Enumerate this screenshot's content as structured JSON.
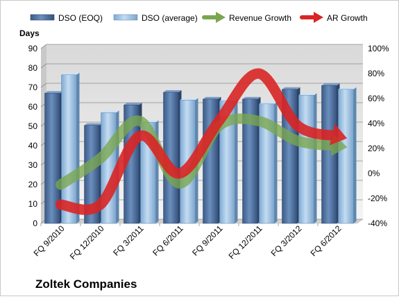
{
  "chart_data": {
    "type": "bar",
    "title": "",
    "company": "Zoltek Companies",
    "categories": [
      "FQ 9/2010",
      "FQ 12/2010",
      "FQ 3/2011",
      "FQ 6/2011",
      "FQ 9/2011",
      "FQ 12/2011",
      "FQ 3/2012",
      "FQ 6/2012"
    ],
    "y_left": {
      "label": "Days",
      "ylim": [
        0,
        90
      ],
      "ticks": [
        "0",
        "10",
        "20",
        "30",
        "40",
        "50",
        "60",
        "70",
        "80",
        "90"
      ]
    },
    "y_right": {
      "ylim": [
        -40,
        100
      ],
      "ticks": [
        "-40%",
        "-20%",
        "0%",
        "20%",
        "40%",
        "60%",
        "80%",
        "100%"
      ]
    },
    "series": [
      {
        "name": "DSO (EOQ)",
        "kind": "bar",
        "axis": "left",
        "color": "#4a6fa1",
        "values": [
          67,
          50.5,
          61,
          67.5,
          64,
          64,
          69,
          71
        ]
      },
      {
        "name": "DSO (average)",
        "kind": "bar",
        "axis": "left",
        "color": "#9cc3e6",
        "values": [
          76.5,
          57,
          52,
          63.5,
          63,
          61.5,
          66,
          69
        ]
      },
      {
        "name": "Revenue Growth",
        "kind": "line",
        "axis": "right",
        "color": "#7aa74e",
        "values": [
          -9,
          12,
          42,
          -8,
          38,
          42,
          26,
          22
        ]
      },
      {
        "name": "AR Growth",
        "kind": "line",
        "axis": "right",
        "color": "#d92525",
        "values": [
          -25,
          -25,
          30,
          0,
          42,
          80,
          38,
          30
        ]
      }
    ],
    "grid": true,
    "legend_position": "top"
  }
}
